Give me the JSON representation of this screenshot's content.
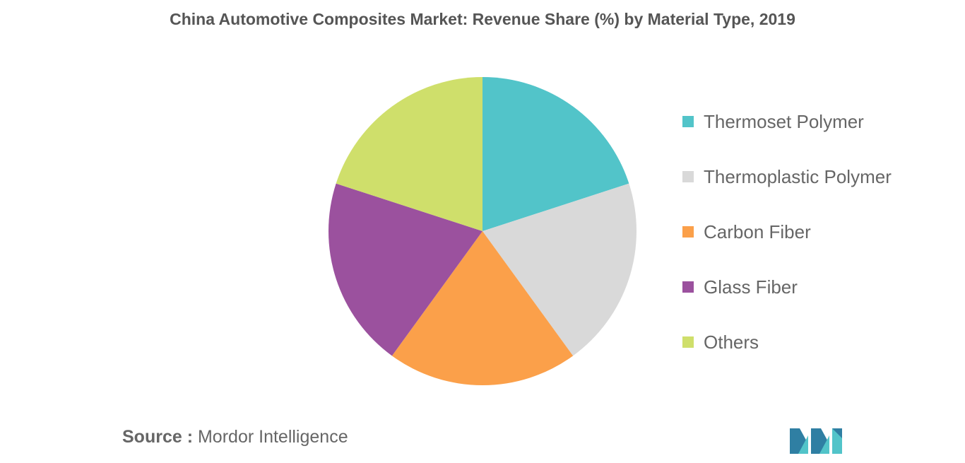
{
  "chart_data": {
    "type": "pie",
    "title": "China Automotive Composites Market: Revenue Share (%) by Material Type, 2019",
    "slices": [
      {
        "label": "Thermoset Polymer",
        "value": 20,
        "color": "#52c4c9"
      },
      {
        "label": "Thermoplastic Polymer",
        "value": 20,
        "color": "#d9d9d9"
      },
      {
        "label": "Carbon Fiber",
        "value": 20,
        "color": "#fba04a"
      },
      {
        "label": "Glass Fiber",
        "value": 20,
        "color": "#9b519e"
      },
      {
        "label": "Others",
        "value": 20,
        "color": "#cfdf6b"
      }
    ],
    "legend_position": "right"
  },
  "source": {
    "prefix": "Source :",
    "name": "Mordor Intelligence"
  },
  "logo": {
    "icon": "mordor-intelligence-logo",
    "colors": [
      "#2f7fa3",
      "#52c4c9"
    ]
  }
}
